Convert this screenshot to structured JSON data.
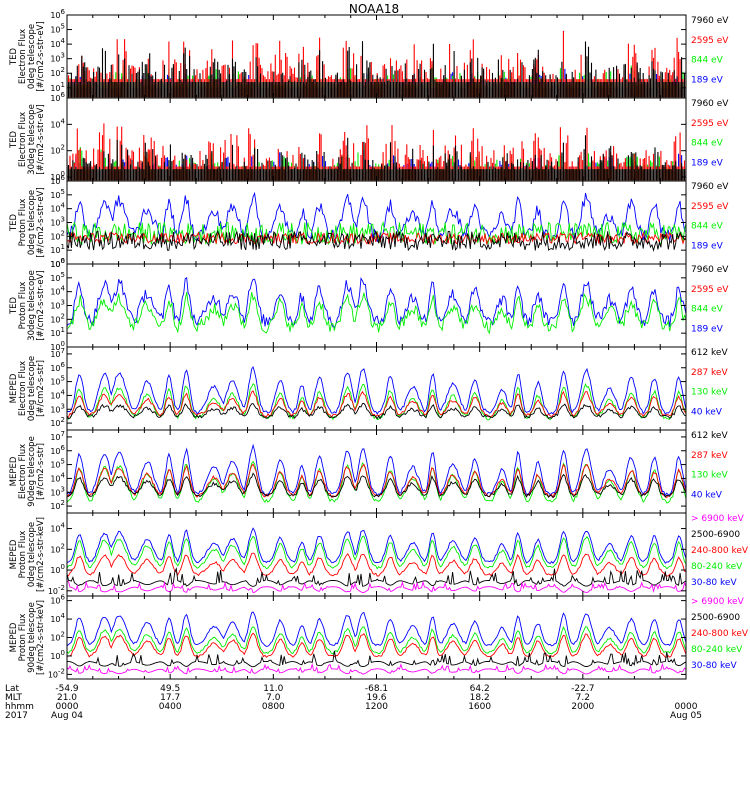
{
  "title": "NOAA18",
  "colors": {
    "black": "#000000",
    "red": "#ff0000",
    "green": "#00ee00",
    "blue": "#0000ff",
    "magenta": "#ff00ff"
  },
  "chart_data": [
    {
      "type": "line",
      "ylabel": [
        "TED",
        "Electron Flux",
        "0deg telescope",
        "[#/cm2-s-str-eV]"
      ],
      "yticks": [
        "10^1",
        "10^2",
        "10^3",
        "10^4",
        "10^5",
        "10^6"
      ],
      "ylim_exp": [
        0.3,
        6
      ],
      "series": [
        {
          "name": "7960 eV",
          "color": "#000000",
          "shape": "spiky",
          "base": 1.4,
          "amp": 2.4
        },
        {
          "name": "2595 eV",
          "color": "#ff0000",
          "shape": "spiky",
          "base": 1.6,
          "amp": 3.0
        },
        {
          "name": "844 eV",
          "color": "#00ee00",
          "shape": "spiky",
          "base": 1.2,
          "amp": 1.4
        },
        {
          "name": "189 eV",
          "color": "#0000ff",
          "shape": "spiky",
          "base": 1.0,
          "amp": 1.2
        }
      ]
    },
    {
      "type": "line",
      "ylabel": [
        "TED",
        "Electron Flux",
        "30deg telescope",
        "[#/cm2-s-str-eV]"
      ],
      "yticks": [
        "10^0",
        "10^2",
        "10^4",
        "10^6"
      ],
      "ylim_exp": [
        -0.3,
        6
      ],
      "series": [
        {
          "name": "7960 eV",
          "color": "#000000",
          "shape": "spiky",
          "base": 0.6,
          "amp": 2.2
        },
        {
          "name": "2595 eV",
          "color": "#ff0000",
          "shape": "spiky",
          "base": 0.8,
          "amp": 3.4
        },
        {
          "name": "844 eV",
          "color": "#00ee00",
          "shape": "spiky",
          "base": 0.6,
          "amp": 1.6
        },
        {
          "name": "189 eV",
          "color": "#0000ff",
          "shape": "spiky",
          "base": 0.5,
          "amp": 1.4
        }
      ]
    },
    {
      "type": "line",
      "ylabel": [
        "TED",
        "Proton Flux",
        "0deg telescope",
        "[#/cm2-s-str-eV]"
      ],
      "yticks": [
        "10^0",
        "10^1",
        "10^2",
        "10^3",
        "10^4",
        "10^5",
        "10^6"
      ],
      "ylim_exp": [
        0,
        6
      ],
      "series": [
        {
          "name": "7960 eV",
          "color": "#000000",
          "shape": "dense",
          "base": 1.4,
          "amp": 1.4
        },
        {
          "name": "2595 eV",
          "color": "#ff0000",
          "shape": "dense",
          "base": 1.7,
          "amp": 0.8
        },
        {
          "name": "844 eV",
          "color": "#00ee00",
          "shape": "dense",
          "base": 1.9,
          "amp": 1.6
        },
        {
          "name": "189 eV",
          "color": "#0000ff",
          "shape": "bumps",
          "base": 2.0,
          "amp": 3.0
        }
      ]
    },
    {
      "type": "line",
      "ylabel": [
        "TED",
        "Proton Flux",
        "30deg telescope",
        "[#/cm2-s-str-eV]"
      ],
      "yticks": [
        "10^0",
        "10^1",
        "10^2",
        "10^3",
        "10^4",
        "10^5",
        "10^6"
      ],
      "ylim_exp": [
        0,
        6
      ],
      "series": [
        {
          "name": "7960 eV",
          "color": "#000000",
          "shape": "none",
          "base": 0,
          "amp": 0
        },
        {
          "name": "2595 eV",
          "color": "#ff0000",
          "shape": "none",
          "base": 0,
          "amp": 0
        },
        {
          "name": "844 eV",
          "color": "#00ee00",
          "shape": "bumps",
          "base": 1.4,
          "amp": 2.4
        },
        {
          "name": "189 eV",
          "color": "#0000ff",
          "shape": "bumps",
          "base": 1.8,
          "amp": 3.2
        }
      ]
    },
    {
      "type": "line",
      "ylabel": [
        "MEPED",
        "Electron Flux",
        "0deg telescope",
        "[#/cm2-s-str]"
      ],
      "yticks": [
        "10^2",
        "10^3",
        "10^4",
        "10^5",
        "10^6",
        "10^7"
      ],
      "ylim_exp": [
        1.5,
        7.5
      ],
      "series": [
        {
          "name": "612 keV",
          "color": "#000000",
          "shape": "floor",
          "base": 2.3,
          "amp": 1.0
        },
        {
          "name": "287 keV",
          "color": "#ff0000",
          "shape": "floor",
          "base": 2.4,
          "amp": 1.8
        },
        {
          "name": "130 keV",
          "color": "#00ee00",
          "shape": "floor",
          "base": 2.2,
          "amp": 2.6
        },
        {
          "name": "40 keV",
          "color": "#0000ff",
          "shape": "floor",
          "base": 2.6,
          "amp": 3.4
        }
      ]
    },
    {
      "type": "line",
      "ylabel": [
        "MEPED",
        "Electron Flux",
        "90deg telescope",
        "[#/cm2-s-str]"
      ],
      "yticks": [
        "10^2",
        "10^3",
        "10^4",
        "10^5",
        "10^6",
        "10^7"
      ],
      "ylim_exp": [
        1.5,
        7.5
      ],
      "series": [
        {
          "name": "612 keV",
          "color": "#000000",
          "shape": "floor",
          "base": 2.6,
          "amp": 1.6
        },
        {
          "name": "287 keV",
          "color": "#ff0000",
          "shape": "floor",
          "base": 2.6,
          "amp": 2.4
        },
        {
          "name": "130 keV",
          "color": "#00ee00",
          "shape": "floor",
          "base": 2.2,
          "amp": 3.0
        },
        {
          "name": "40 keV",
          "color": "#0000ff",
          "shape": "floor",
          "base": 2.7,
          "amp": 3.6
        }
      ]
    },
    {
      "type": "line",
      "ylabel": [
        "MEPED",
        "Proton Flux",
        "0deg telescope",
        "[#/cm2-s-str-keV]"
      ],
      "yticks": [
        "10^-2",
        "10^0",
        "10^2",
        "10^4"
      ],
      "ylim_exp": [
        -2.5,
        5.5
      ],
      "series": [
        {
          "name": "> 6900 keV",
          "color": "#ff00ff",
          "shape": "dips",
          "base": -1.6,
          "amp": 0.6
        },
        {
          "name": "2500-6900",
          "color": "#000000",
          "shape": "dips",
          "base": -1.0,
          "amp": 1.2
        },
        {
          "name": "240-800 keV",
          "color": "#ff0000",
          "shape": "floor",
          "base": -0.6,
          "amp": 2.2
        },
        {
          "name": "80-240 keV",
          "color": "#00ee00",
          "shape": "floor",
          "base": 0.1,
          "amp": 3.2
        },
        {
          "name": "30-80 keV",
          "color": "#0000ff",
          "shape": "floor",
          "base": 0.6,
          "amp": 3.4
        }
      ]
    },
    {
      "type": "line",
      "ylabel": [
        "MEPED",
        "Proton Flux",
        "90deg telescope",
        "[#/cm2-s-str-keV]"
      ],
      "yticks": [
        "10^-2",
        "10^0",
        "10^2",
        "10^4",
        "10^6"
      ],
      "ylim_exp": [
        -2.5,
        6.5
      ],
      "series": [
        {
          "name": "> 6900 keV",
          "color": "#ff00ff",
          "shape": "dips",
          "base": -1.4,
          "amp": 0.6
        },
        {
          "name": "2500-6900",
          "color": "#000000",
          "shape": "dips",
          "base": -0.6,
          "amp": 1.2
        },
        {
          "name": "240-800 keV",
          "color": "#ff0000",
          "shape": "floor",
          "base": -0.2,
          "amp": 2.6
        },
        {
          "name": "80-240 keV",
          "color": "#00ee00",
          "shape": "floor",
          "base": 0.2,
          "amp": 3.0
        },
        {
          "name": "30-80 keV",
          "color": "#0000ff",
          "shape": "floor",
          "base": 1.0,
          "amp": 3.8
        }
      ]
    }
  ],
  "xaxis": {
    "row_labels": [
      "Lat",
      "MLT",
      "hhmm",
      "2017"
    ],
    "ticks": [
      {
        "lat": "-54.9",
        "mlt": "21.0",
        "hhmm": "0000",
        "date": "Aug 04"
      },
      {
        "lat": "49.5",
        "mlt": "17.7",
        "hhmm": "0400",
        "date": ""
      },
      {
        "lat": "11.0",
        "mlt": "7.0",
        "hhmm": "0800",
        "date": ""
      },
      {
        "lat": "-68.1",
        "mlt": "19.6",
        "hhmm": "1200",
        "date": ""
      },
      {
        "lat": "64.2",
        "mlt": "18.2",
        "hhmm": "1600",
        "date": ""
      },
      {
        "lat": "-22.7",
        "mlt": "7.2",
        "hhmm": "2000",
        "date": ""
      },
      {
        "lat": "",
        "mlt": "",
        "hhmm": "0000",
        "date": "Aug 05"
      }
    ]
  }
}
